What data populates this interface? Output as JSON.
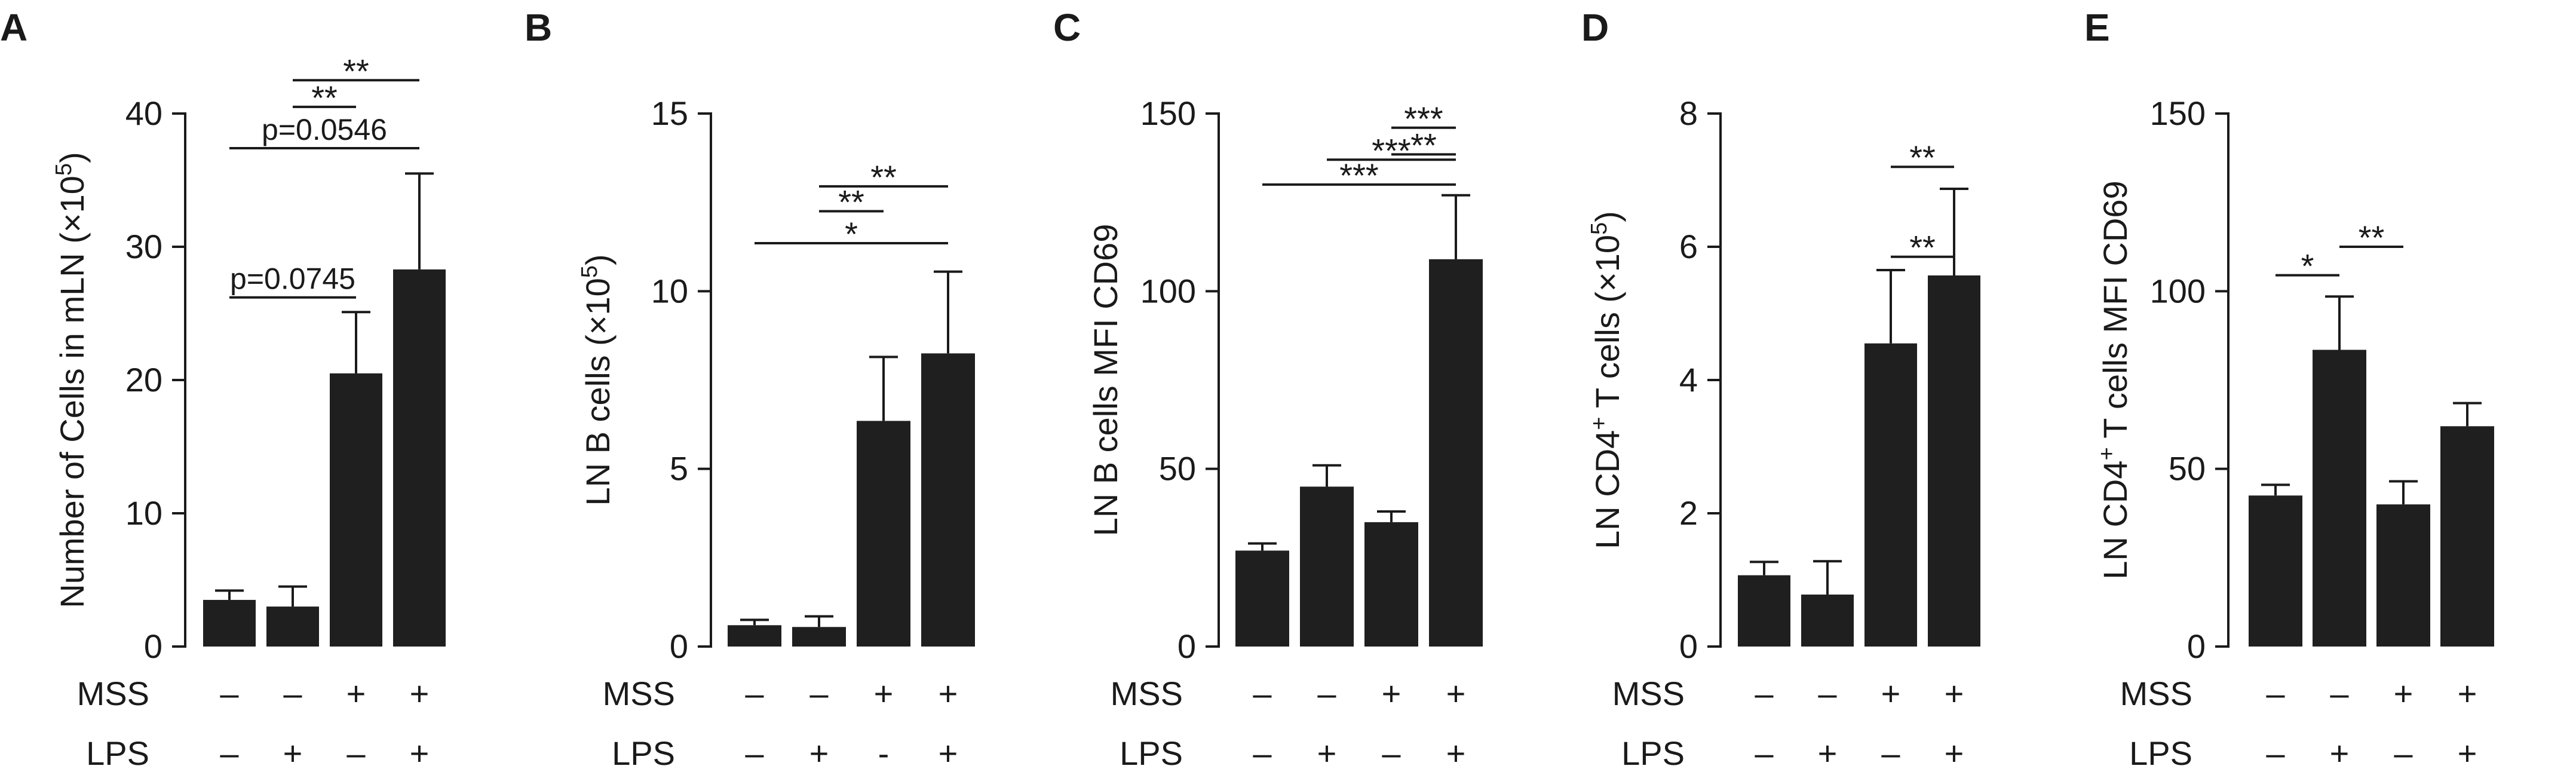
{
  "chart_data": [
    {
      "panel": "A",
      "type": "bar",
      "ylabel": "Number of Cells in mLN (×10⁵)",
      "ylabel_parts": [
        "Number of Cells in mLN (×10",
        "5",
        ")"
      ],
      "ylim": [
        0,
        40
      ],
      "yticks": [
        "0",
        "10",
        "20",
        "30",
        "40"
      ],
      "values": [
        3.5,
        3.0,
        20.5,
        28.3
      ],
      "errors": [
        0.7,
        1.5,
        4.6,
        7.2
      ],
      "mss": [
        "–",
        "–",
        "+",
        "+"
      ],
      "lps": [
        "–",
        "+",
        "–",
        "+"
      ],
      "comparisons": [
        {
          "from": 0,
          "to": 2,
          "label": "p=0.0745",
          "y": 26.2
        },
        {
          "from": 0,
          "to": 3,
          "label": "p=0.0546",
          "y": 37.4
        },
        {
          "from": 1,
          "to": 2,
          "label": "**",
          "y": 40.5
        },
        {
          "from": 1,
          "to": 3,
          "label": "**",
          "y": 42.5
        }
      ]
    },
    {
      "panel": "B",
      "type": "bar",
      "ylabel": "LN B cells (×10⁵)",
      "ylabel_parts": [
        "LN B cells (×10",
        "5",
        ")"
      ],
      "ylim": [
        0,
        15
      ],
      "yticks": [
        "0",
        "5",
        "10",
        "15"
      ],
      "values": [
        0.6,
        0.55,
        6.35,
        8.25
      ],
      "errors": [
        0.15,
        0.3,
        1.8,
        2.3
      ],
      "mss": [
        "–",
        "–",
        "+",
        "+"
      ],
      "lps": [
        "–",
        "+",
        "-",
        "+"
      ],
      "comparisons": [
        {
          "from": 0,
          "to": 3,
          "label": "*",
          "y": 11.35
        },
        {
          "from": 1,
          "to": 2,
          "label": "**",
          "y": 12.25
        },
        {
          "from": 1,
          "to": 3,
          "label": "**",
          "y": 12.95
        }
      ]
    },
    {
      "panel": "C",
      "type": "bar",
      "ylabel": "LN B cells MFI CD69",
      "ylim": [
        0,
        150
      ],
      "yticks": [
        "0",
        "50",
        "100",
        "150"
      ],
      "values": [
        27,
        45,
        35,
        109
      ],
      "errors": [
        2,
        6,
        3,
        18
      ],
      "mss": [
        "–",
        "–",
        "+",
        "+"
      ],
      "lps": [
        "–",
        "+",
        "–",
        "+"
      ],
      "comparisons": [
        {
          "from": 0,
          "to": 3,
          "label": "***",
          "y": 130
        },
        {
          "from": 1,
          "to": 3,
          "label": "***",
          "y": 137
        },
        {
          "from": 2,
          "to": 3,
          "label": "**",
          "y": 138.5
        },
        {
          "from": 2,
          "to": 3,
          "label": "***",
          "y": 146
        }
      ]
    },
    {
      "panel": "D",
      "type": "bar",
      "ylabel": "LN CD4⁺ T cells (×10⁵)",
      "ylabel_parts": [
        "LN CD4",
        "+",
        " T cells (×10",
        "5",
        ")"
      ],
      "ylim": [
        0,
        8
      ],
      "yticks": [
        "0",
        "2",
        "4",
        "6",
        "8"
      ],
      "values": [
        1.07,
        0.78,
        4.55,
        5.57
      ],
      "errors": [
        0.2,
        0.5,
        1.1,
        1.3
      ],
      "mss": [
        "–",
        "–",
        "+",
        "+"
      ],
      "lps": [
        "–",
        "+",
        "–",
        "+"
      ],
      "comparisons": [
        {
          "from": 2,
          "to": 3,
          "label": "**",
          "y": 5.85
        },
        {
          "from": 2,
          "to": 3,
          "label": "**",
          "y": 7.2
        }
      ]
    },
    {
      "panel": "E",
      "type": "bar",
      "ylabel": "LN CD4⁺ T cells MFI CD69",
      "ylabel_parts": [
        "LN CD4",
        "+",
        " T cells MFI CD69"
      ],
      "ylim": [
        0,
        150
      ],
      "yticks": [
        "0",
        "50",
        "100",
        "150"
      ],
      "values": [
        42.5,
        83.5,
        40,
        62
      ],
      "errors": [
        3,
        15,
        6.5,
        6.5
      ],
      "mss": [
        "–",
        "–",
        "+",
        "+"
      ],
      "lps": [
        "–",
        "+",
        "–",
        "+"
      ],
      "comparisons": [
        {
          "from": 0,
          "to": 1,
          "label": "*",
          "y": 104.5
        },
        {
          "from": 1,
          "to": 2,
          "label": "**",
          "y": 112.5
        }
      ]
    }
  ],
  "row_labels": {
    "mss": "MSS",
    "lps": "LPS"
  }
}
